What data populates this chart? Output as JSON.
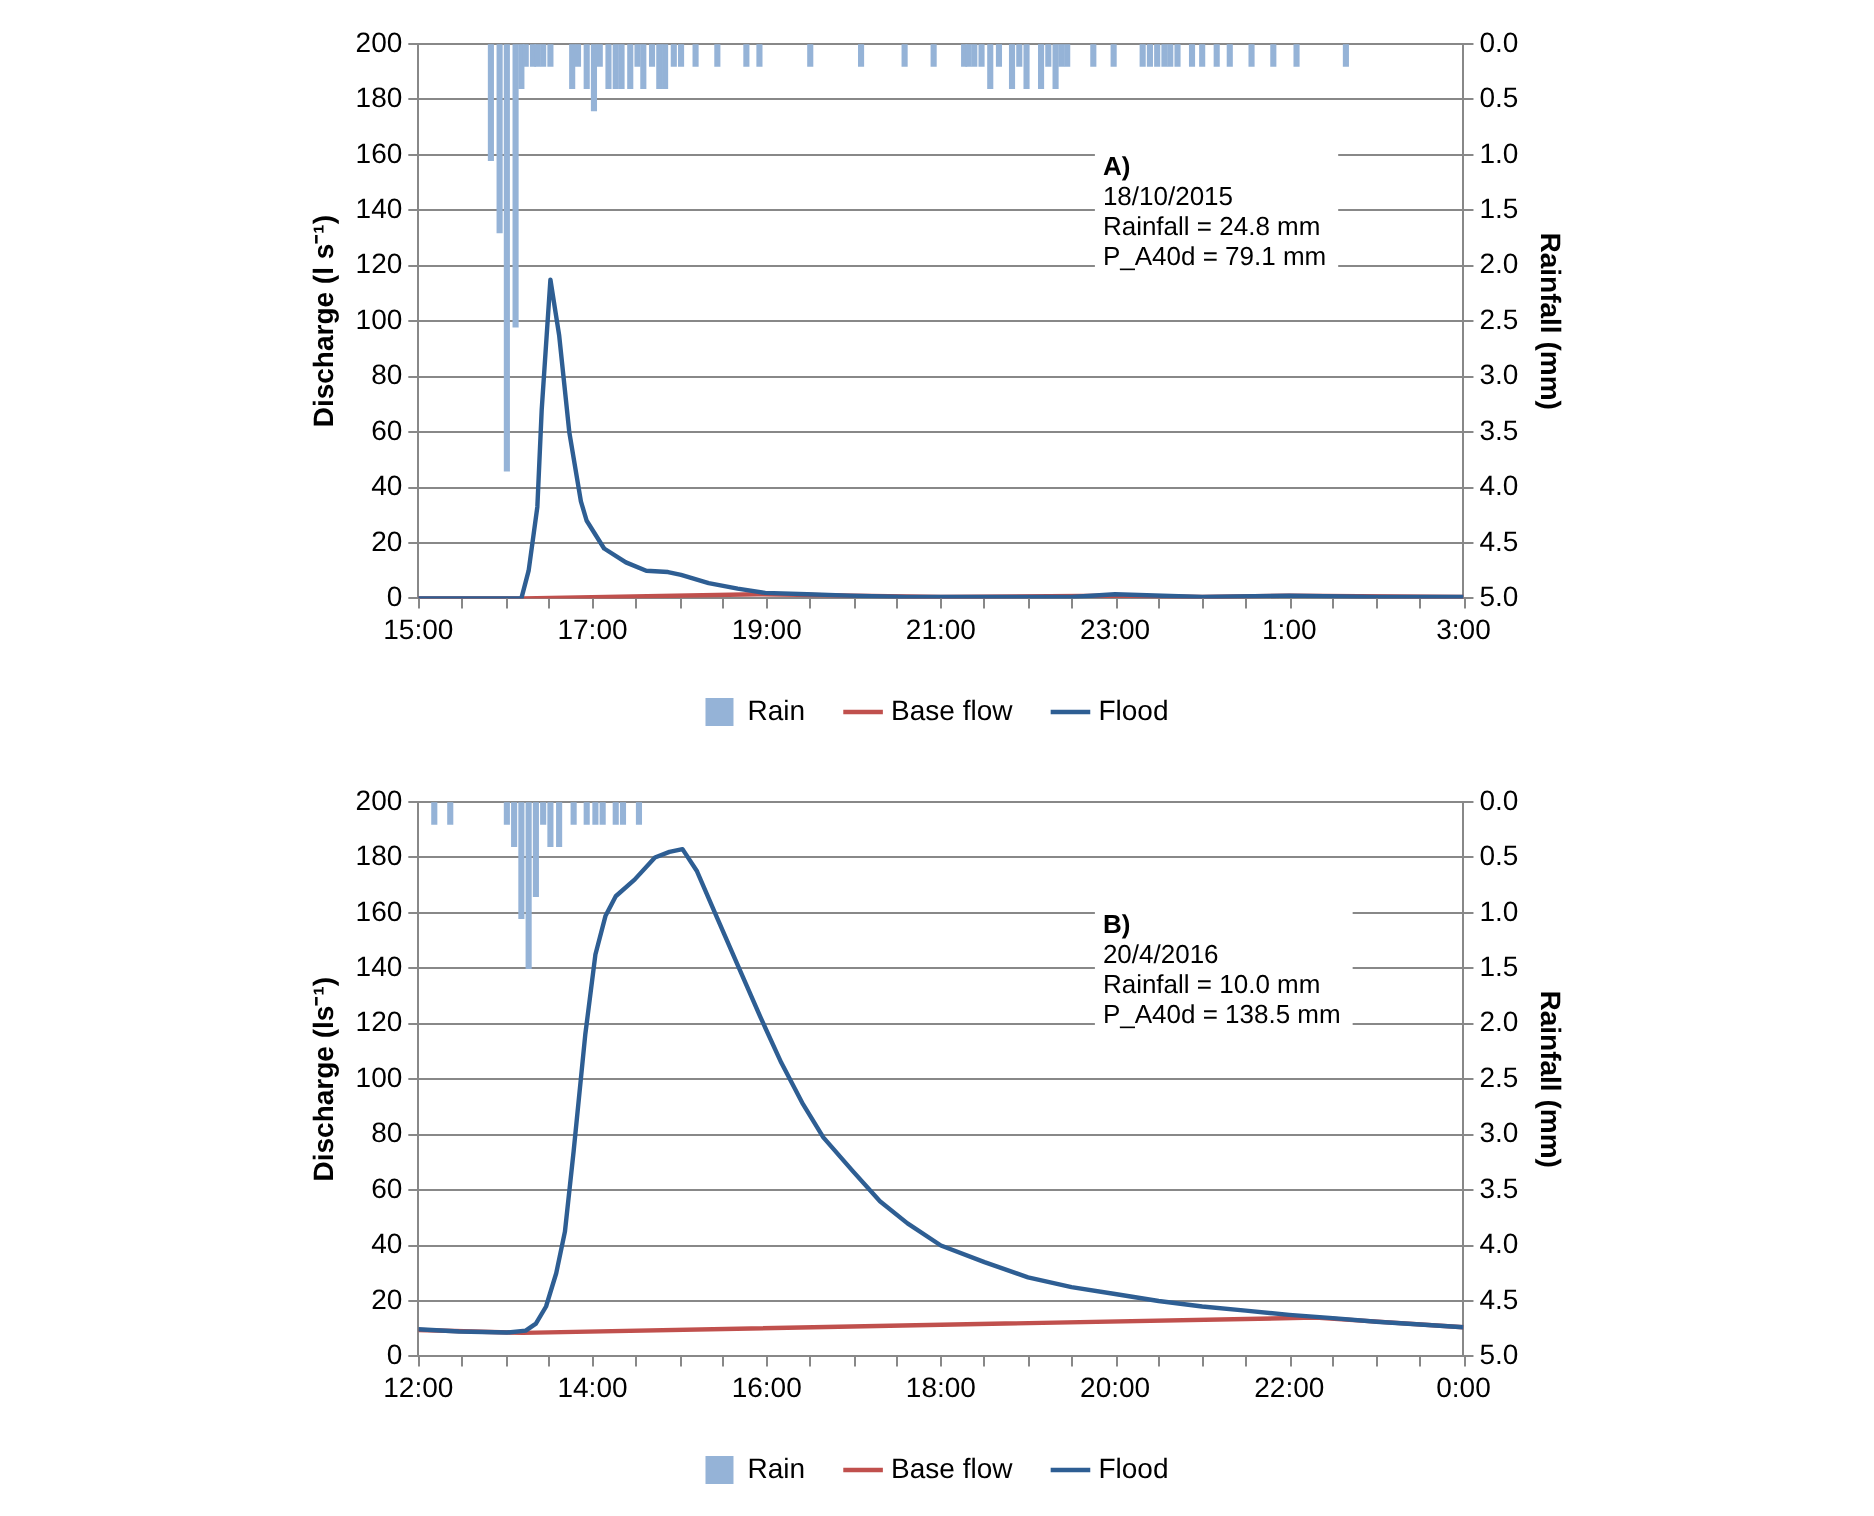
{
  "chart_data": [
    {
      "type": "line",
      "ylabel": "Discharge (l s⁻¹)",
      "y2label": "Rainfall (mm)",
      "annotations": [
        "A)",
        "18/10/2015",
        "Rainfall = 24.8 mm",
        "P_A40d = 79.1 mm"
      ],
      "xlim": [
        "2015-10-18T15:00",
        "2015-10-19T03:00"
      ],
      "xticks": [
        {
          "value": "2015-10-18T15:00",
          "label": "15:00"
        },
        {
          "value": "2015-10-18T16:00",
          "label": null
        },
        {
          "value": "2015-10-18T17:00",
          "label": "17:00"
        },
        {
          "value": "2015-10-18T18:00",
          "label": null
        },
        {
          "value": "2015-10-18T19:00",
          "label": "19:00"
        },
        {
          "value": "2015-10-18T20:00",
          "label": null
        },
        {
          "value": "2015-10-18T21:00",
          "label": "21:00"
        },
        {
          "value": "2015-10-18T22:00",
          "label": null
        },
        {
          "value": "2015-10-18T23:00",
          "label": "23:00"
        },
        {
          "value": "2015-10-19T00:00",
          "label": null
        },
        {
          "value": "2015-10-19T01:00",
          "label": "1:00"
        },
        {
          "value": "2015-10-19T02:00",
          "label": null
        },
        {
          "value": "2015-10-19T03:00",
          "label": "3:00"
        }
      ],
      "ylim": [
        0,
        200
      ],
      "yticks": [
        0,
        20,
        40,
        60,
        80,
        100,
        120,
        140,
        160,
        180,
        200
      ],
      "y2lim": [
        5,
        0
      ],
      "y2ticks": [
        {
          "value": 0,
          "label": "0.0"
        },
        {
          "value": 0.5,
          "label": "0.5"
        },
        {
          "value": 1,
          "label": "1.0"
        },
        {
          "value": 1.5,
          "label": "1.5"
        },
        {
          "value": 2,
          "label": "2.0"
        },
        {
          "value": 2.5,
          "label": "2.5"
        },
        {
          "value": 3,
          "label": "3.0"
        },
        {
          "value": 3.5,
          "label": "3.5"
        },
        {
          "value": 4,
          "label": "4.0"
        },
        {
          "value": 4.5,
          "label": "4.5"
        },
        {
          "value": 5,
          "label": "5.0"
        }
      ],
      "grid": "y",
      "legend": "bottom",
      "marker": "none",
      "line_style": "solid",
      "series": [
        {
          "name": "Rain",
          "type": "bar",
          "axis": "y2",
          "color": "#95b3d7",
          "x": [
            "2015-10-18T15:50",
            "2015-10-18T15:56",
            "2015-10-18T16:01",
            "2015-10-18T16:07",
            "2015-10-18T16:11",
            "2015-10-18T16:14",
            "2015-10-18T16:19",
            "2015-10-18T16:22",
            "2015-10-18T16:26",
            "2015-10-18T16:31",
            "2015-10-18T16:46",
            "2015-10-18T16:50",
            "2015-10-18T16:56",
            "2015-10-18T17:01",
            "2015-10-18T17:05",
            "2015-10-18T17:11",
            "2015-10-18T17:16",
            "2015-10-18T17:20",
            "2015-10-18T17:26",
            "2015-10-18T17:31",
            "2015-10-18T17:35",
            "2015-10-18T17:41",
            "2015-10-18T17:46",
            "2015-10-18T17:50",
            "2015-10-18T17:56",
            "2015-10-18T18:01",
            "2015-10-18T18:11",
            "2015-10-18T18:26",
            "2015-10-18T18:46",
            "2015-10-18T18:55",
            "2015-10-18T19:30",
            "2015-10-18T20:05",
            "2015-10-18T20:35",
            "2015-10-18T20:55",
            "2015-10-18T21:16",
            "2015-10-18T21:19",
            "2015-10-18T21:23",
            "2015-10-18T21:28",
            "2015-10-18T21:34",
            "2015-10-18T21:40",
            "2015-10-18T21:49",
            "2015-10-18T21:54",
            "2015-10-18T21:59",
            "2015-10-18T22:09",
            "2015-10-18T22:14",
            "2015-10-18T22:19",
            "2015-10-18T22:23",
            "2015-10-18T22:27",
            "2015-10-18T22:45",
            "2015-10-18T22:59",
            "2015-10-18T23:19",
            "2015-10-18T23:24",
            "2015-10-18T23:29",
            "2015-10-18T23:34",
            "2015-10-18T23:38",
            "2015-10-18T23:43",
            "2015-10-18T23:53",
            "2015-10-19T00:00",
            "2015-10-19T00:10",
            "2015-10-19T00:19",
            "2015-10-19T00:34",
            "2015-10-19T00:49",
            "2015-10-19T01:05",
            "2015-10-19T01:39"
          ],
          "values": [
            1.05,
            1.7,
            3.85,
            2.55,
            0.4,
            0.2,
            0.2,
            0.2,
            0.2,
            0.2,
            0.4,
            0.2,
            0.4,
            0.6,
            0.2,
            0.4,
            0.4,
            0.4,
            0.4,
            0.2,
            0.4,
            0.2,
            0.4,
            0.4,
            0.2,
            0.2,
            0.2,
            0.2,
            0.2,
            0.2,
            0.2,
            0.2,
            0.2,
            0.2,
            0.2,
            0.2,
            0.2,
            0.2,
            0.4,
            0.2,
            0.4,
            0.2,
            0.4,
            0.4,
            0.2,
            0.4,
            0.2,
            0.2,
            0.2,
            0.2,
            0.2,
            0.2,
            0.2,
            0.2,
            0.2,
            0.2,
            0.2,
            0.2,
            0.2,
            0.2,
            0.2,
            0.2,
            0.2,
            0.2
          ]
        },
        {
          "name": "Base flow",
          "color": "#c0504d",
          "x": [
            "2015-10-18T15:00",
            "2015-10-18T16:12",
            "2015-10-18T18:54",
            "2015-10-18T20:00",
            "2015-10-18T21:00",
            "2015-10-18T23:00",
            "2015-10-19T00:00",
            "2015-10-19T01:00",
            "2015-10-19T03:00"
          ],
          "values": [
            0,
            0,
            1.5,
            1,
            0.5,
            1,
            0.5,
            1,
            0.5
          ]
        },
        {
          "name": "Flood",
          "color": "#2e5e93",
          "x": [
            "2015-10-18T15:00",
            "2015-10-18T16:11",
            "2015-10-18T16:16",
            "2015-10-18T16:22",
            "2015-10-18T16:25",
            "2015-10-18T16:31",
            "2015-10-18T16:37",
            "2015-10-18T16:44",
            "2015-10-18T16:52",
            "2015-10-18T16:56",
            "2015-10-18T17:08",
            "2015-10-18T17:23",
            "2015-10-18T17:37",
            "2015-10-18T17:52",
            "2015-10-18T18:01",
            "2015-10-18T18:20",
            "2015-10-18T18:40",
            "2015-10-18T18:59",
            "2015-10-18T19:28",
            "2015-10-18T19:57",
            "2015-10-18T20:36",
            "2015-10-18T21:30",
            "2015-10-18T22:30",
            "2015-10-18T23:00",
            "2015-10-19T00:00",
            "2015-10-19T01:00",
            "2015-10-19T02:00",
            "2015-10-19T03:00"
          ],
          "values": [
            0,
            0,
            10,
            33,
            68,
            115,
            95,
            60,
            35,
            28,
            18,
            13,
            10,
            9.5,
            8.5,
            5.5,
            3.5,
            2,
            1.5,
            1,
            0.5,
            0.5,
            0.5,
            1.5,
            0.5,
            1,
            0.5,
            0.5
          ]
        }
      ]
    },
    {
      "type": "line",
      "ylabel": "Discharge (ls⁻¹)",
      "y2label": "Rainfall (mm)",
      "annotations": [
        "B)",
        "20/4/2016",
        "Rainfall = 10.0 mm",
        "P_A40d = 138.5 mm"
      ],
      "xlim": [
        "2016-04-20T12:00",
        "2016-04-21T00:00"
      ],
      "xticks": [
        {
          "value": "2016-04-20T12:00",
          "label": "12:00"
        },
        {
          "value": "2016-04-20T13:00",
          "label": null
        },
        {
          "value": "2016-04-20T14:00",
          "label": "14:00"
        },
        {
          "value": "2016-04-20T15:00",
          "label": null
        },
        {
          "value": "2016-04-20T16:00",
          "label": "16:00"
        },
        {
          "value": "2016-04-20T17:00",
          "label": null
        },
        {
          "value": "2016-04-20T18:00",
          "label": "18:00"
        },
        {
          "value": "2016-04-20T19:00",
          "label": null
        },
        {
          "value": "2016-04-20T20:00",
          "label": "20:00"
        },
        {
          "value": "2016-04-20T21:00",
          "label": null
        },
        {
          "value": "2016-04-20T22:00",
          "label": "22:00"
        },
        {
          "value": "2016-04-20T23:00",
          "label": null
        },
        {
          "value": "2016-04-21T00:00",
          "label": "0:00"
        }
      ],
      "ylim": [
        0,
        200
      ],
      "yticks": [
        0,
        20,
        40,
        60,
        80,
        100,
        120,
        140,
        160,
        180,
        200
      ],
      "y2lim": [
        5,
        0
      ],
      "y2ticks": [
        {
          "value": 0,
          "label": "0.0"
        },
        {
          "value": 0.5,
          "label": "0.5"
        },
        {
          "value": 1,
          "label": "1.0"
        },
        {
          "value": 1.5,
          "label": "1.5"
        },
        {
          "value": 2,
          "label": "2.0"
        },
        {
          "value": 2.5,
          "label": "2.5"
        },
        {
          "value": 3,
          "label": "3.0"
        },
        {
          "value": 3.5,
          "label": "3.5"
        },
        {
          "value": 4,
          "label": "4.0"
        },
        {
          "value": 4.5,
          "label": "4.5"
        },
        {
          "value": 5,
          "label": "5.0"
        }
      ],
      "grid": "y",
      "legend": "bottom",
      "marker": "none",
      "line_style": "solid",
      "series": [
        {
          "name": "Rain",
          "type": "bar",
          "axis": "y2",
          "color": "#95b3d7",
          "x": [
            "2016-04-20T12:11",
            "2016-04-20T12:22",
            "2016-04-20T13:01",
            "2016-04-20T13:06",
            "2016-04-20T13:11",
            "2016-04-20T13:16",
            "2016-04-20T13:21",
            "2016-04-20T13:26",
            "2016-04-20T13:31",
            "2016-04-20T13:37",
            "2016-04-20T13:47",
            "2016-04-20T13:56",
            "2016-04-20T14:02",
            "2016-04-20T14:07",
            "2016-04-20T14:16",
            "2016-04-20T14:21",
            "2016-04-20T14:32"
          ],
          "values": [
            0.2,
            0.2,
            0.2,
            0.4,
            1.05,
            1.5,
            0.85,
            0.2,
            0.4,
            0.4,
            0.2,
            0.2,
            0.2,
            0.2,
            0.2,
            0.2,
            0.2
          ]
        },
        {
          "name": "Base flow",
          "color": "#c0504d",
          "x": [
            "2016-04-20T12:00",
            "2016-04-20T13:12",
            "2016-04-20T22:18",
            "2016-04-21T00:00"
          ],
          "values": [
            9.5,
            8.5,
            14,
            10.5
          ]
        },
        {
          "name": "Flood",
          "color": "#2e5e93",
          "x": [
            "2016-04-20T12:00",
            "2016-04-20T12:28",
            "2016-04-20T13:01",
            "2016-04-20T13:14",
            "2016-04-20T13:21",
            "2016-04-20T13:28",
            "2016-04-20T13:35",
            "2016-04-20T13:41",
            "2016-04-20T13:47",
            "2016-04-20T13:55",
            "2016-04-20T14:02",
            "2016-04-20T14:09",
            "2016-04-20T14:16",
            "2016-04-20T14:29",
            "2016-04-20T14:43",
            "2016-04-20T14:53",
            "2016-04-20T15:02",
            "2016-04-20T15:12",
            "2016-04-20T15:26",
            "2016-04-20T15:41",
            "2016-04-20T15:56",
            "2016-04-20T16:10",
            "2016-04-20T16:25",
            "2016-04-20T16:39",
            "2016-04-20T16:59",
            "2016-04-20T17:18",
            "2016-04-20T17:37",
            "2016-04-20T18:00",
            "2016-04-20T18:30",
            "2016-04-20T19:00",
            "2016-04-20T19:30",
            "2016-04-20T20:00",
            "2016-04-20T20:30",
            "2016-04-20T21:00",
            "2016-04-20T21:30",
            "2016-04-20T22:00",
            "2016-04-20T22:30",
            "2016-04-20T23:00",
            "2016-04-20T23:30",
            "2016-04-21T00:00"
          ],
          "values": [
            9.8,
            9,
            8.6,
            9.3,
            11.8,
            18,
            30,
            45,
            74,
            116,
            145,
            159,
            166,
            172,
            180,
            182,
            183,
            175,
            158,
            140,
            122,
            106,
            91,
            79,
            67,
            56,
            48,
            40,
            34,
            28.5,
            25,
            22.5,
            20,
            18,
            16.5,
            15,
            13.8,
            12.5,
            11.5,
            10.5
          ]
        }
      ]
    }
  ]
}
